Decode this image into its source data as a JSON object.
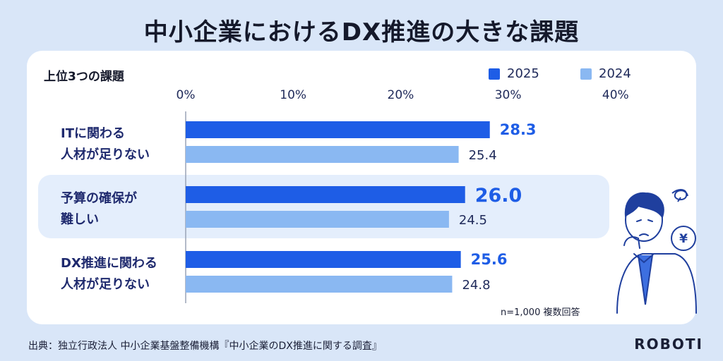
{
  "page": {
    "title": "中小企業におけるDX推進の大きな課題",
    "heading": "上位3つの課題",
    "note": "n=1,000 複数回答",
    "source": "出典：独立行政法人 中小企業基盤整備機構『中小企業のDX推進に関する調査』",
    "brand": "ROBOTI",
    "icons": [
      "worried-person-icon",
      "yen-coin-icon",
      "confused-scribble-icon"
    ]
  },
  "colors": {
    "series_2025": "#1e5de6",
    "series_2024": "#8ab8f2",
    "highlight_row": "#e4eefc",
    "background": "#d9e6f8"
  },
  "chart_data": {
    "type": "bar",
    "orientation": "horizontal",
    "categories": [
      [
        "ITに関わる",
        "人材が足りない"
      ],
      [
        "予算の確保が",
        "難しい"
      ],
      [
        "DX推進に関わる",
        "人材が足りない"
      ]
    ],
    "series": [
      {
        "name": "2025",
        "values": [
          28.3,
          26.0,
          25.6
        ],
        "labels": [
          "28.3",
          "26.0",
          "25.6"
        ]
      },
      {
        "name": "2024",
        "values": [
          25.4,
          24.5,
          24.8
        ],
        "labels": [
          "25.4",
          "24.5",
          "24.8"
        ]
      }
    ],
    "xlim": [
      0,
      40
    ],
    "xticks": [
      "0%",
      "10%",
      "20%",
      "30%",
      "40%"
    ],
    "tick_values": [
      0,
      10,
      20,
      30,
      40
    ],
    "legend_position": "top-right",
    "highlighted_category_index": 1,
    "grid": false
  }
}
